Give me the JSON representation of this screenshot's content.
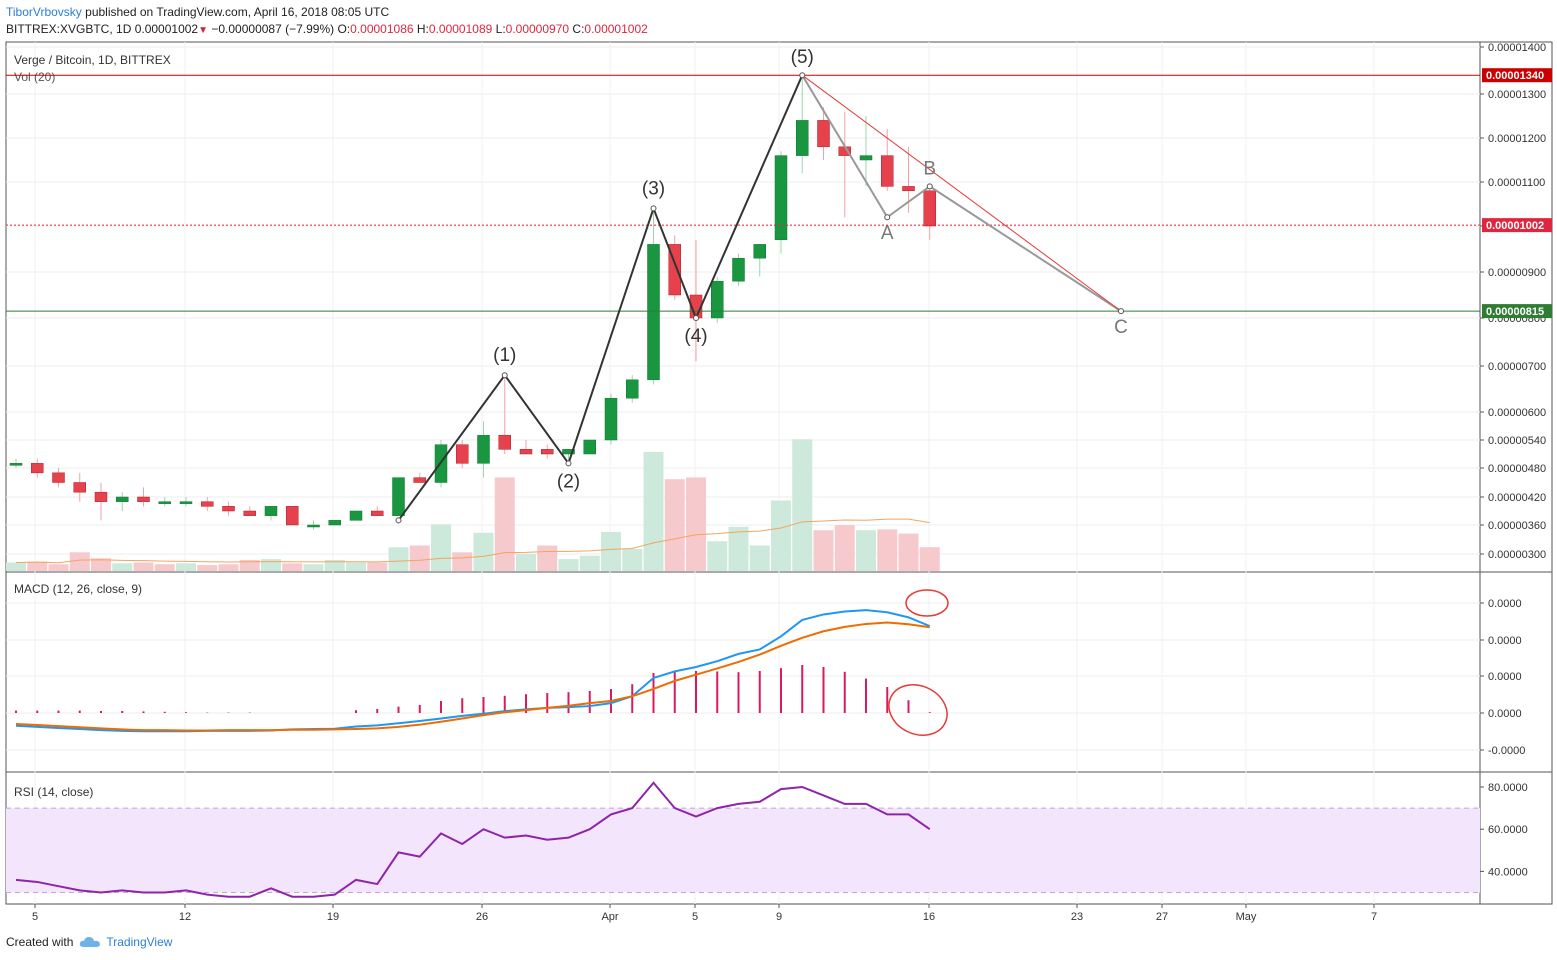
{
  "header": {
    "author": "TiborVrbovsky",
    "published": "published on TradingView.com, April 16, 2018 08:05 UTC",
    "symbol": "BITTREX:XVGBTC, 1D",
    "last": "0.00001002",
    "change": "−0.00000087 (−7.99%)",
    "o_label": "O:",
    "o": "0.00001086",
    "h_label": "H:",
    "h": "0.00001089",
    "l_label": "L:",
    "l": "0.00000970",
    "c_label": "C:",
    "c": "0.00001002"
  },
  "footer": {
    "created_with": "Created with",
    "brand": "TradingView"
  },
  "chart_data": [
    {
      "type": "candlestick",
      "title": "Verge / Bitcoin, 1D, BITTREX",
      "volume_label": "Vol (20)",
      "y_ticks": [
        "0.00001400",
        "0.00001300",
        "0.00001200",
        "0.00001100",
        "0.00001000",
        "0.00000900",
        "0.00000800",
        "0.00000700",
        "0.00000600",
        "0.00000540",
        "0.00000480",
        "0.00000420",
        "0.00000360",
        "0.00000300"
      ],
      "x_ticks": [
        "5",
        "12",
        "19",
        "26",
        "Apr",
        "5",
        "9",
        "16",
        "23",
        "27",
        "May",
        "7"
      ],
      "price_levels": [
        {
          "value": "0.00001340",
          "color": "#cc0000"
        },
        {
          "value": "0.00001002",
          "color": "#e0263e"
        },
        {
          "value": "0.00000815",
          "color": "#2e7d32"
        }
      ],
      "candles": [
        [
          4.9e-06,
          5e-06,
          4.8e-06,
          4.9e-06
        ],
        [
          4.9e-06,
          5e-06,
          4.6e-06,
          4.7e-06
        ],
        [
          4.7e-06,
          4.8e-06,
          4.4e-06,
          4.5e-06
        ],
        [
          4.5e-06,
          4.7e-06,
          4.1e-06,
          4.3e-06
        ],
        [
          4.3e-06,
          4.5e-06,
          3.7e-06,
          4.1e-06
        ],
        [
          4.1e-06,
          4.3e-06,
          3.9e-06,
          4.2e-06
        ],
        [
          4.2e-06,
          4.4e-06,
          4e-06,
          4.1e-06
        ],
        [
          4.1e-06,
          4.2e-06,
          4e-06,
          4.1e-06
        ],
        [
          4.1e-06,
          4.2e-06,
          4e-06,
          4.1e-06
        ],
        [
          4.1e-06,
          4.2e-06,
          3.9e-06,
          4e-06
        ],
        [
          4e-06,
          4.1e-06,
          3.8e-06,
          3.9e-06
        ],
        [
          3.9e-06,
          4e-06,
          3.8e-06,
          3.8e-06
        ],
        [
          3.8e-06,
          4e-06,
          3.7e-06,
          4e-06
        ],
        [
          4e-06,
          4e-06,
          3.6e-06,
          3.6e-06
        ],
        [
          3.6e-06,
          3.7e-06,
          3.5e-06,
          3.6e-06
        ],
        [
          3.6e-06,
          3.7e-06,
          3.6e-06,
          3.7e-06
        ],
        [
          3.7e-06,
          3.9e-06,
          3.7e-06,
          3.9e-06
        ],
        [
          3.9e-06,
          4e-06,
          3.8e-06,
          3.8e-06
        ],
        [
          3.8e-06,
          4.6e-06,
          3.8e-06,
          4.6e-06
        ],
        [
          4.6e-06,
          4.7e-06,
          4.5e-06,
          4.5e-06
        ],
        [
          4.5e-06,
          5.4e-06,
          4.4e-06,
          5.3e-06
        ],
        [
          5.3e-06,
          5.4e-06,
          4.8e-06,
          4.9e-06
        ],
        [
          4.9e-06,
          5.8e-06,
          4.6e-06,
          5.5e-06
        ],
        [
          5.5e-06,
          6.8e-06,
          5.1e-06,
          5.2e-06
        ],
        [
          5.2e-06,
          5.4e-06,
          5.1e-06,
          5.1e-06
        ],
        [
          5.2e-06,
          5.3e-06,
          5e-06,
          5.1e-06
        ],
        [
          5.1e-06,
          5.2e-06,
          4.9e-06,
          5.2e-06
        ],
        [
          5.1e-06,
          5.4e-06,
          5.1e-06,
          5.4e-06
        ],
        [
          5.4e-06,
          6.4e-06,
          5.3e-06,
          6.3e-06
        ],
        [
          6.3e-06,
          6.8e-06,
          6.2e-06,
          6.7e-06
        ],
        [
          6.7e-06,
          1.04e-05,
          6.6e-06,
          9.6e-06
        ],
        [
          9.6e-06,
          9.8e-06,
          8.4e-06,
          8.5e-06
        ],
        [
          8.5e-06,
          9.7e-06,
          7.1e-06,
          8e-06
        ],
        [
          8e-06,
          8.9e-06,
          7.9e-06,
          8.8e-06
        ],
        [
          8.8e-06,
          9.4e-06,
          8.7e-06,
          9.3e-06
        ],
        [
          9.3e-06,
          9.6e-06,
          8.9e-06,
          9.6e-06
        ],
        [
          9.7e-06,
          1.17e-05,
          9.4e-06,
          1.16e-05
        ],
        [
          1.16e-05,
          1.34e-05,
          1.12e-05,
          1.24e-05
        ],
        [
          1.24e-05,
          1.27e-05,
          1.15e-05,
          1.18e-05
        ],
        [
          1.18e-05,
          1.26e-05,
          1.02e-05,
          1.16e-05
        ],
        [
          1.15e-05,
          1.25e-05,
          1.09e-05,
          1.16e-05
        ],
        [
          1.16e-05,
          1.22e-05,
          1.08e-05,
          1.09e-05
        ],
        [
          1.09e-05,
          1.18e-05,
          1.03e-05,
          1.08e-05
        ],
        [
          1.08e-05,
          1.09e-05,
          9.7e-06,
          1e-05
        ]
      ],
      "volume": [
        [
          10,
          "up"
        ],
        [
          11,
          "down"
        ],
        [
          8,
          "down"
        ],
        [
          22,
          "down"
        ],
        [
          15,
          "down"
        ],
        [
          9,
          "up"
        ],
        [
          10,
          "down"
        ],
        [
          8,
          "down"
        ],
        [
          9,
          "up"
        ],
        [
          7,
          "down"
        ],
        [
          8,
          "down"
        ],
        [
          13,
          "down"
        ],
        [
          14,
          "up"
        ],
        [
          9,
          "down"
        ],
        [
          8,
          "up"
        ],
        [
          13,
          "up"
        ],
        [
          10,
          "up"
        ],
        [
          10,
          "down"
        ],
        [
          28,
          "up"
        ],
        [
          30,
          "down"
        ],
        [
          55,
          "up"
        ],
        [
          22,
          "down"
        ],
        [
          45,
          "up"
        ],
        [
          110,
          "down"
        ],
        [
          20,
          "up"
        ],
        [
          30,
          "down"
        ],
        [
          14,
          "up"
        ],
        [
          18,
          "up"
        ],
        [
          46,
          "up"
        ],
        [
          26,
          "up"
        ],
        [
          140,
          "up"
        ],
        [
          108,
          "down"
        ],
        [
          110,
          "down"
        ],
        [
          35,
          "up"
        ],
        [
          52,
          "up"
        ],
        [
          30,
          "up"
        ],
        [
          83,
          "up"
        ],
        [
          155,
          "up"
        ],
        [
          48,
          "down"
        ],
        [
          54,
          "down"
        ],
        [
          48,
          "up"
        ],
        [
          49,
          "down"
        ],
        [
          44,
          "down"
        ],
        [
          28,
          "down"
        ]
      ],
      "wave_labels": [
        {
          "text": "(1)",
          "index": 23,
          "price": 6.8e-06
        },
        {
          "text": "(2)",
          "index": 26,
          "price": 4.9e-06
        },
        {
          "text": "(3)",
          "index": 30,
          "price": 1.04e-05
        },
        {
          "text": "(4)",
          "index": 32,
          "price": 8e-06
        },
        {
          "text": "(5)",
          "index": 37,
          "price": 1.34e-05
        },
        {
          "text": "A",
          "index": 41,
          "price": 1.02e-05
        },
        {
          "text": "B",
          "index": 43,
          "price": 1.09e-05
        },
        {
          "text": "C",
          "index": 52,
          "price": 8.15e-06
        }
      ]
    },
    {
      "type": "line",
      "title": "MACD (12, 26, close, 9)",
      "y_ticks": [
        "0.0000",
        "0.0000",
        "0.0000",
        "0.0000",
        "-0.0000"
      ],
      "series": [
        {
          "color": "#2196f3",
          "values": [
            -0.35,
            -0.38,
            -0.41,
            -0.44,
            -0.47,
            -0.49,
            -0.5,
            -0.5,
            -0.5,
            -0.49,
            -0.49,
            -0.49,
            -0.48,
            -0.45,
            -0.44,
            -0.43,
            -0.37,
            -0.34,
            -0.28,
            -0.22,
            -0.15,
            -0.08,
            -0.02,
            0.05,
            0.1,
            0.14,
            0.16,
            0.19,
            0.27,
            0.46,
            0.96,
            1.14,
            1.26,
            1.42,
            1.62,
            1.74,
            2.1,
            2.55,
            2.7,
            2.78,
            2.82,
            2.76,
            2.62,
            2.38
          ]
        },
        {
          "color": "#ef6c00",
          "values": [
            -0.3,
            -0.33,
            -0.36,
            -0.39,
            -0.42,
            -0.45,
            -0.47,
            -0.47,
            -0.48,
            -0.48,
            -0.47,
            -0.47,
            -0.47,
            -0.46,
            -0.46,
            -0.45,
            -0.44,
            -0.42,
            -0.38,
            -0.32,
            -0.24,
            -0.15,
            -0.06,
            0.02,
            0.08,
            0.14,
            0.2,
            0.27,
            0.33,
            0.46,
            0.66,
            0.88,
            1.05,
            1.22,
            1.4,
            1.6,
            1.84,
            2.06,
            2.24,
            2.36,
            2.44,
            2.48,
            2.43,
            2.35
          ]
        }
      ],
      "histogram": [
        0.06,
        0.06,
        0.06,
        0.06,
        0.05,
        0.05,
        0.04,
        0.03,
        0.02,
        0.01,
        0.01,
        0.01,
        0.0,
        0.0,
        0.0,
        0.0,
        0.07,
        0.1,
        0.16,
        0.2,
        0.3,
        0.37,
        0.4,
        0.43,
        0.47,
        0.5,
        0.52,
        0.55,
        0.6,
        0.72,
        1.0,
        1.04,
        1.05,
        1.04,
        1.02,
        1.05,
        1.12,
        1.2,
        1.15,
        1.03,
        0.86,
        0.65,
        0.32,
        0.02
      ]
    },
    {
      "type": "line",
      "title": "RSI (14, close)",
      "y_ticks": [
        "80.0000",
        "60.0000",
        "40.0000"
      ],
      "band": [
        30,
        70
      ],
      "series": [
        {
          "color": "#8e24aa",
          "values": [
            36,
            35,
            33,
            31,
            30,
            31,
            30,
            30,
            31,
            29,
            28,
            28,
            32,
            28,
            28,
            29,
            36,
            34,
            49,
            47,
            58,
            53,
            60,
            56,
            57,
            55,
            56,
            60,
            67,
            70,
            82,
            70,
            66,
            70,
            72,
            73,
            79,
            80,
            76,
            72,
            72,
            67,
            67,
            60
          ]
        }
      ]
    }
  ]
}
